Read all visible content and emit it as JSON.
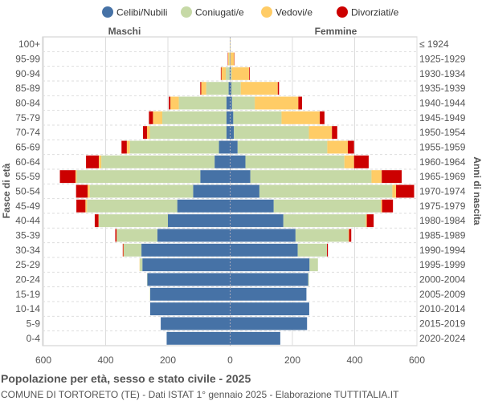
{
  "chart_data": {
    "type": "bar",
    "orientation": "horizontal-pyramid",
    "title": "Popolazione per età, sesso e stato civile - 2025",
    "subtitle": "COMUNE DI TORTORETO (TE) - Dati ISTAT 1° gennaio 2025 - Elaborazione TUTTITALIA.IT",
    "ylabel_left": "Fasce di età",
    "ylabel_right": "Anni di nascita",
    "left_label": "Maschi",
    "right_label": "Femmine",
    "xlim": [
      -600,
      600
    ],
    "xticks": [
      "600",
      "400",
      "200",
      "0",
      "200",
      "400",
      "600"
    ],
    "grid": true,
    "legend_position": "top",
    "legend": [
      {
        "name": "Celibi/Nubili",
        "color": "#4672A6"
      },
      {
        "name": "Coniugati/e",
        "color": "#C6D9A6"
      },
      {
        "name": "Vedovi/e",
        "color": "#FFCC66"
      },
      {
        "name": "Divorziati/e",
        "color": "#CC0000"
      }
    ],
    "categories": [
      "100+",
      "95-99",
      "90-94",
      "85-89",
      "80-84",
      "75-79",
      "70-74",
      "65-69",
      "60-64",
      "55-59",
      "50-54",
      "45-49",
      "40-44",
      "35-39",
      "30-34",
      "25-29",
      "20-24",
      "15-19",
      "10-14",
      "5-9",
      "0-4"
    ],
    "birth_years": [
      "≤ 1924",
      "1925-1929",
      "1930-1934",
      "1935-1939",
      "1940-1944",
      "1945-1949",
      "1950-1954",
      "1955-1959",
      "1960-1964",
      "1965-1969",
      "1970-1974",
      "1975-1979",
      "1980-1984",
      "1985-1989",
      "1990-1994",
      "1995-1999",
      "2000-2004",
      "2005-2009",
      "2010-2014",
      "2015-2019",
      "2020-2024"
    ],
    "males": {
      "celibi": [
        0,
        1,
        2,
        5,
        12,
        12,
        12,
        36,
        50,
        96,
        119,
        170,
        200,
        234,
        285,
        282,
        266,
        257,
        257,
        223,
        204
      ],
      "coniugati": [
        1,
        2,
        12,
        72,
        153,
        206,
        246,
        286,
        364,
        397,
        332,
        290,
        222,
        130,
        57,
        8,
        1,
        1,
        0,
        0,
        0
      ],
      "vedovi": [
        0,
        4,
        14,
        16,
        27,
        30,
        9,
        10,
        8,
        4,
        7,
        5,
        1,
        1,
        1,
        1,
        0,
        0,
        0,
        0,
        0
      ],
      "divorziati": [
        0,
        1,
        2,
        3,
        5,
        13,
        13,
        17,
        41,
        50,
        37,
        29,
        12,
        4,
        2,
        0,
        0,
        0,
        0,
        0,
        0
      ]
    },
    "females": {
      "nubili": [
        0,
        0,
        2,
        4,
        6,
        10,
        12,
        24,
        49,
        65,
        94,
        140,
        171,
        210,
        217,
        255,
        251,
        245,
        254,
        247,
        161
      ],
      "coniugate": [
        0,
        1,
        3,
        30,
        73,
        155,
        241,
        288,
        318,
        389,
        427,
        344,
        265,
        170,
        94,
        27,
        2,
        0,
        0,
        0,
        0
      ],
      "vedove": [
        1,
        12,
        56,
        119,
        140,
        123,
        74,
        66,
        31,
        33,
        12,
        4,
        3,
        2,
        0,
        0,
        0,
        0,
        0,
        0,
        0
      ],
      "divorziate": [
        0,
        1,
        2,
        4,
        12,
        15,
        17,
        20,
        47,
        64,
        58,
        35,
        22,
        7,
        3,
        0,
        0,
        0,
        0,
        0,
        0
      ]
    }
  }
}
